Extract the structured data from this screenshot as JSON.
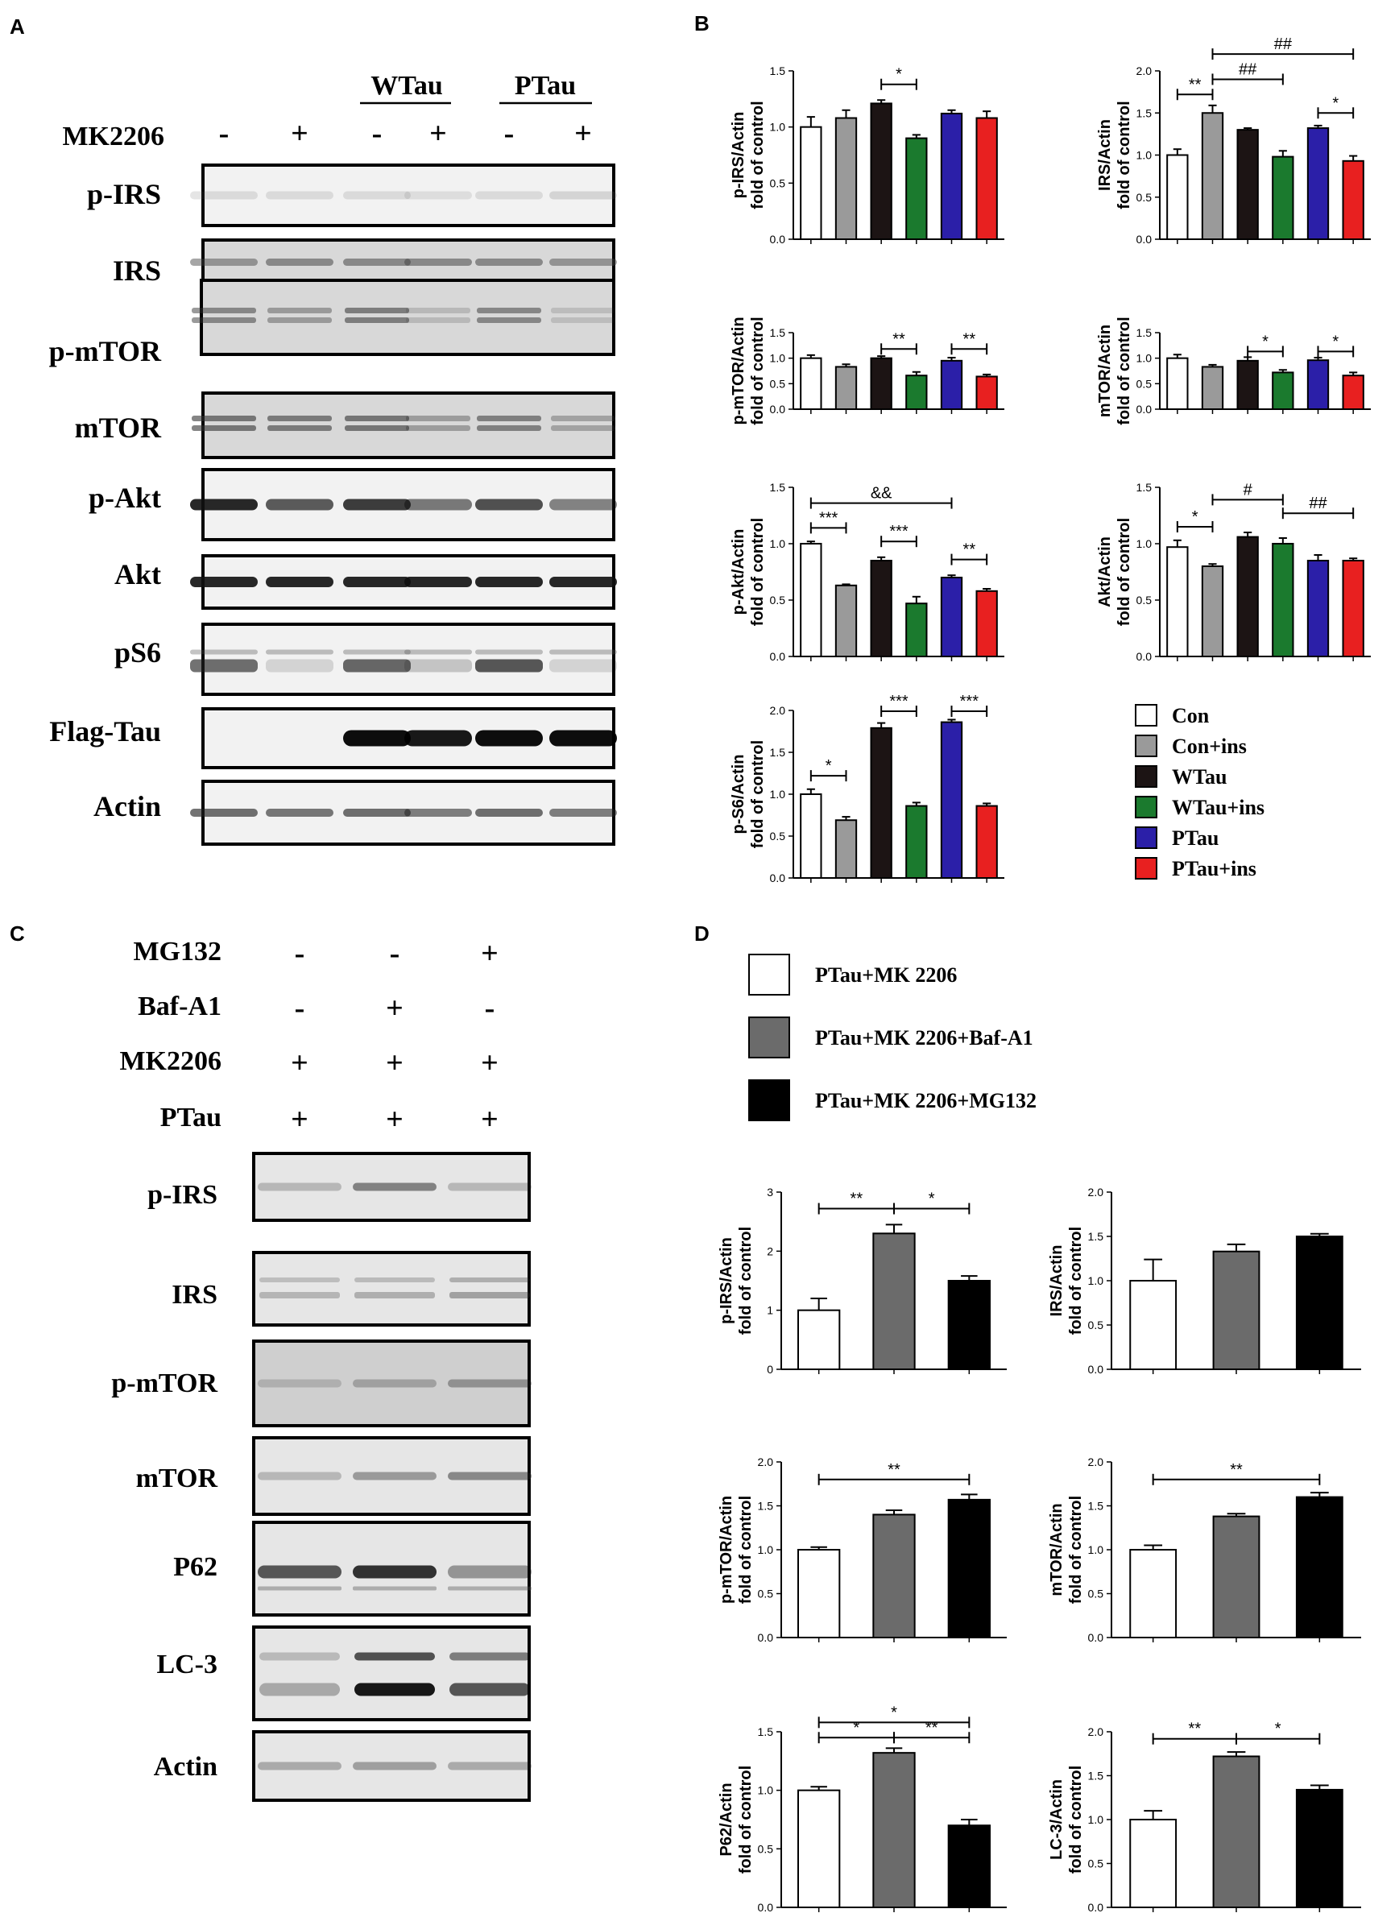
{
  "panels": {
    "a": "A",
    "b": "B",
    "c": "C",
    "d": "D"
  },
  "blotA": {
    "groups": [
      "WTau",
      "PTau"
    ],
    "treatment_label": "MK2206",
    "signs": [
      "-",
      "+",
      "-",
      "+",
      "-",
      "+"
    ],
    "rows": [
      "p-IRS",
      "IRS",
      "p-mTOR",
      "mTOR",
      "p-Akt",
      "Akt",
      "pS6",
      "Flag-Tau",
      "Actin"
    ]
  },
  "blotC": {
    "conditions": [
      {
        "label": "MG132",
        "signs": [
          "-",
          "-",
          "+"
        ]
      },
      {
        "label": "Baf-A1",
        "signs": [
          "-",
          "+",
          "-"
        ]
      },
      {
        "label": "MK2206",
        "signs": [
          "+",
          "+",
          "+"
        ]
      },
      {
        "label": "PTau",
        "signs": [
          "+",
          "+",
          "+"
        ]
      }
    ],
    "rows": [
      "p-IRS",
      "IRS",
      "p-mTOR",
      "mTOR",
      "P62",
      "LC-3",
      "Actin"
    ]
  },
  "legendB": {
    "items": [
      "Con",
      "Con+ins",
      "WTau",
      "WTau+ins",
      "PTau",
      "PTau+ins"
    ],
    "colors": [
      "#ffffff",
      "#9a9a9a",
      "#1c1414",
      "#1b7a2e",
      "#2b1fa8",
      "#e82020"
    ]
  },
  "legendD": {
    "items": [
      "PTau+MK 2206",
      "PTau+MK 2206+Baf-A1",
      "PTau+MK 2206+MG132"
    ],
    "colors": [
      "#ffffff",
      "#6b6b6b",
      "#000000"
    ]
  },
  "chart_data": [
    {
      "id": "B1",
      "type": "bar",
      "ylabel": [
        "p-IRS/Actin",
        "fold of control"
      ],
      "ylim": [
        0,
        1.5
      ],
      "ticks": [
        "0.0",
        "0.5",
        "1.0",
        "1.5"
      ],
      "categories": [
        "Con",
        "Con+ins",
        "WTau",
        "WTau+ins",
        "PTau",
        "PTau+ins"
      ],
      "values": [
        1.0,
        1.08,
        1.21,
        0.9,
        1.12,
        1.08
      ],
      "errors": [
        0.09,
        0.07,
        0.03,
        0.03,
        0.03,
        0.06
      ],
      "annotations": [
        {
          "from": 2,
          "to": 3,
          "label": "*",
          "y": 1.38
        }
      ]
    },
    {
      "id": "B2",
      "type": "bar",
      "ylabel": [
        "IRS/Actin",
        "fold of control"
      ],
      "ylim": [
        0,
        2.0
      ],
      "ticks": [
        "0.0",
        "0.5",
        "1.0",
        "1.5",
        "2.0"
      ],
      "categories": [
        "Con",
        "Con+ins",
        "WTau",
        "WTau+ins",
        "PTau",
        "PTau+ins"
      ],
      "values": [
        1.0,
        1.5,
        1.3,
        0.98,
        1.32,
        0.93
      ],
      "errors": [
        0.07,
        0.09,
        0.02,
        0.07,
        0.03,
        0.06
      ],
      "annotations": [
        {
          "from": 0,
          "to": 1,
          "label": "**",
          "y": 1.72
        },
        {
          "from": 1,
          "to": 3,
          "label": "##",
          "y": 1.9
        },
        {
          "from": 1,
          "to": 5,
          "label": "##",
          "y": 2.2
        },
        {
          "from": 4,
          "to": 5,
          "label": "*",
          "y": 1.5
        }
      ]
    },
    {
      "id": "B3",
      "type": "bar",
      "ylabel": [
        "p-mTOR/Actin",
        "fold of control"
      ],
      "ylim": [
        0,
        1.5
      ],
      "ticks": [
        "0.0",
        "0.5",
        "1.0",
        "1.5"
      ],
      "categories": [
        "Con",
        "Con+ins",
        "WTau",
        "WTau+ins",
        "PTau",
        "PTau+ins"
      ],
      "values": [
        1.0,
        0.83,
        1.0,
        0.66,
        0.95,
        0.64
      ],
      "errors": [
        0.06,
        0.05,
        0.04,
        0.07,
        0.06,
        0.04
      ],
      "annotations": [
        {
          "from": 2,
          "to": 3,
          "label": "**",
          "y": 1.18
        },
        {
          "from": 4,
          "to": 5,
          "label": "**",
          "y": 1.18
        }
      ]
    },
    {
      "id": "B4",
      "type": "bar",
      "ylabel": [
        "mTOR/Actin",
        "fold of control"
      ],
      "ylim": [
        0,
        1.5
      ],
      "ticks": [
        "0.0",
        "0.5",
        "1.0",
        "1.5"
      ],
      "categories": [
        "Con",
        "Con+ins",
        "WTau",
        "WTau+ins",
        "PTau",
        "PTau+ins"
      ],
      "values": [
        1.0,
        0.83,
        0.95,
        0.72,
        0.96,
        0.66
      ],
      "errors": [
        0.07,
        0.04,
        0.07,
        0.05,
        0.05,
        0.06
      ],
      "annotations": [
        {
          "from": 2,
          "to": 3,
          "label": "*",
          "y": 1.13
        },
        {
          "from": 4,
          "to": 5,
          "label": "*",
          "y": 1.13
        }
      ]
    },
    {
      "id": "B5",
      "type": "bar",
      "ylabel": [
        "p-Akt/Actin",
        "fold of control"
      ],
      "ylim": [
        0,
        1.5
      ],
      "ticks": [
        "0.0",
        "0.5",
        "1.0",
        "1.5"
      ],
      "categories": [
        "Con",
        "Con+ins",
        "WTau",
        "WTau+ins",
        "PTau",
        "PTau+ins"
      ],
      "values": [
        1.0,
        0.63,
        0.85,
        0.47,
        0.7,
        0.58
      ],
      "errors": [
        0.02,
        0.01,
        0.03,
        0.06,
        0.02,
        0.02
      ],
      "annotations": [
        {
          "from": 0,
          "to": 1,
          "label": "***",
          "y": 1.14
        },
        {
          "from": 0,
          "to": 4,
          "label": "&&",
          "y": 1.36
        },
        {
          "from": 2,
          "to": 3,
          "label": "***",
          "y": 1.02
        },
        {
          "from": 4,
          "to": 5,
          "label": "**",
          "y": 0.86
        }
      ]
    },
    {
      "id": "B6",
      "type": "bar",
      "ylabel": [
        "Akt/Actin",
        "fold of control"
      ],
      "ylim": [
        0,
        1.5
      ],
      "ticks": [
        "0.0",
        "0.5",
        "1.0",
        "1.5"
      ],
      "categories": [
        "Con",
        "Con+ins",
        "WTau",
        "WTau+ins",
        "PTau",
        "PTau+ins"
      ],
      "values": [
        0.97,
        0.8,
        1.06,
        1.0,
        0.85,
        0.85
      ],
      "errors": [
        0.06,
        0.02,
        0.04,
        0.05,
        0.05,
        0.02
      ],
      "annotations": [
        {
          "from": 0,
          "to": 1,
          "label": "*",
          "y": 1.15
        },
        {
          "from": 1,
          "to": 3,
          "label": "#",
          "y": 1.39
        },
        {
          "from": 3,
          "to": 5,
          "label": "##",
          "y": 1.27
        }
      ]
    },
    {
      "id": "B7",
      "type": "bar",
      "ylabel": [
        "p-S6/Actin",
        "fold of control"
      ],
      "ylim": [
        0,
        2.0
      ],
      "ticks": [
        "0.0",
        "0.5",
        "1.0",
        "1.5",
        "2.0"
      ],
      "categories": [
        "Con",
        "Con+ins",
        "WTau",
        "WTau+ins",
        "PTau",
        "PTau+ins"
      ],
      "values": [
        1.0,
        0.69,
        1.79,
        0.86,
        1.86,
        0.86
      ],
      "errors": [
        0.06,
        0.04,
        0.06,
        0.04,
        0.03,
        0.03
      ],
      "annotations": [
        {
          "from": 0,
          "to": 1,
          "label": "*",
          "y": 1.22
        },
        {
          "from": 2,
          "to": 3,
          "label": "***",
          "y": 1.99
        },
        {
          "from": 4,
          "to": 5,
          "label": "***",
          "y": 1.99
        }
      ]
    },
    {
      "id": "D1",
      "type": "bar",
      "ylabel": [
        "p-IRS/Actin",
        "fold of control"
      ],
      "ylim": [
        0,
        3
      ],
      "ticks": [
        "0",
        "1",
        "2",
        "3"
      ],
      "categories": [
        "PTau+MK 2206",
        "PTau+MK 2206+Baf-A1",
        "PTau+MK 2206+MG132"
      ],
      "values": [
        1.0,
        2.3,
        1.5
      ],
      "errors": [
        0.2,
        0.15,
        0.08
      ],
      "annotations": [
        {
          "from": 0,
          "to": 1,
          "label": "**",
          "y": 2.72
        },
        {
          "from": 1,
          "to": 2,
          "label": "*",
          "y": 2.72
        }
      ]
    },
    {
      "id": "D2",
      "type": "bar",
      "ylabel": [
        "IRS/Actin",
        "fold of control"
      ],
      "ylim": [
        0,
        2.0
      ],
      "ticks": [
        "0.0",
        "0.5",
        "1.0",
        "1.5",
        "2.0"
      ],
      "categories": [
        "PTau+MK 2206",
        "PTau+MK 2206+Baf-A1",
        "PTau+MK 2206+MG132"
      ],
      "values": [
        1.0,
        1.33,
        1.5
      ],
      "errors": [
        0.24,
        0.08,
        0.03
      ],
      "annotations": []
    },
    {
      "id": "D3",
      "type": "bar",
      "ylabel": [
        "p-mTOR/Actin",
        "fold of control"
      ],
      "ylim": [
        0,
        2.0
      ],
      "ticks": [
        "0.0",
        "0.5",
        "1.0",
        "1.5",
        "2.0"
      ],
      "categories": [
        "PTau+MK 2206",
        "PTau+MK 2206+Baf-A1",
        "PTau+MK 2206+MG132"
      ],
      "values": [
        1.0,
        1.4,
        1.57
      ],
      "errors": [
        0.03,
        0.05,
        0.06
      ],
      "annotations": [
        {
          "from": 0,
          "to": 2,
          "label": "**",
          "y": 1.8
        }
      ]
    },
    {
      "id": "D4",
      "type": "bar",
      "ylabel": [
        "mTOR/Actin",
        "fold of control"
      ],
      "ylim": [
        0,
        2.0
      ],
      "ticks": [
        "0.0",
        "0.5",
        "1.0",
        "1.5",
        "2.0"
      ],
      "categories": [
        "PTau+MK 2206",
        "PTau+MK 2206+Baf-A1",
        "PTau+MK 2206+MG132"
      ],
      "values": [
        1.0,
        1.38,
        1.6
      ],
      "errors": [
        0.05,
        0.03,
        0.05
      ],
      "annotations": [
        {
          "from": 0,
          "to": 2,
          "label": "**",
          "y": 1.8
        }
      ]
    },
    {
      "id": "D5",
      "type": "bar",
      "ylabel": [
        "P62/Actin",
        "fold of control"
      ],
      "ylim": [
        0,
        1.5
      ],
      "ticks": [
        "0.0",
        "0.5",
        "1.0",
        "1.5"
      ],
      "categories": [
        "PTau+MK 2206",
        "PTau+MK 2206+Baf-A1",
        "PTau+MK 2206+MG132"
      ],
      "values": [
        1.0,
        1.32,
        0.7
      ],
      "errors": [
        0.03,
        0.04,
        0.05
      ],
      "annotations": [
        {
          "from": 0,
          "to": 2,
          "label": "*",
          "y": 1.58
        },
        {
          "from": 0,
          "to": 1,
          "label": "*",
          "y": 1.45
        },
        {
          "from": 1,
          "to": 2,
          "label": "**",
          "y": 1.45
        }
      ]
    },
    {
      "id": "D6",
      "type": "bar",
      "ylabel": [
        "LC-3/Actin",
        "fold of control"
      ],
      "ylim": [
        0,
        2.0
      ],
      "ticks": [
        "0.0",
        "0.5",
        "1.0",
        "1.5",
        "2.0"
      ],
      "categories": [
        "PTau+MK 2206",
        "PTau+MK 2206+Baf-A1",
        "PTau+MK 2206+MG132"
      ],
      "values": [
        1.0,
        1.72,
        1.34
      ],
      "errors": [
        0.1,
        0.05,
        0.05
      ],
      "annotations": [
        {
          "from": 0,
          "to": 1,
          "label": "**",
          "y": 1.92
        },
        {
          "from": 1,
          "to": 2,
          "label": "*",
          "y": 1.92
        }
      ]
    }
  ]
}
